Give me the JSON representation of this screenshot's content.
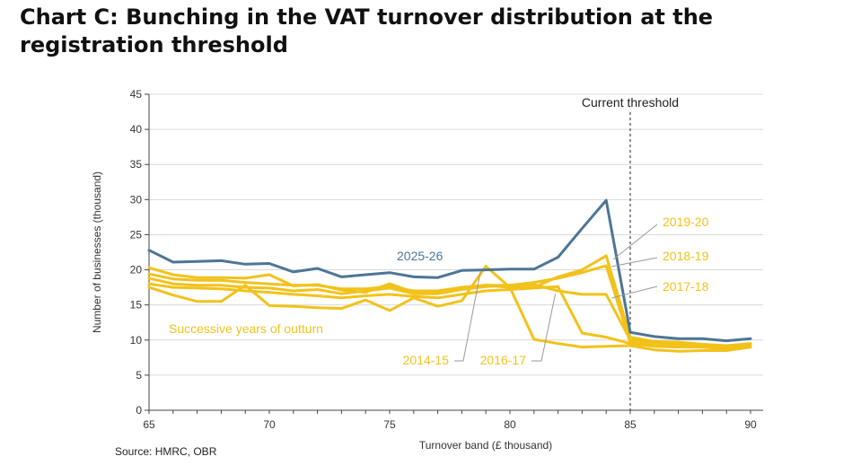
{
  "title": "Chart C: Bunching in the VAT turnover distribution at the registration threshold",
  "source": "Source: HMRC, OBR",
  "colors": {
    "highlight": "#4e7595",
    "outturn": "#f2c21b",
    "axis": "#444444",
    "grid": "#d9d9d9",
    "annotation_line": "#999999"
  },
  "chart_data": {
    "type": "line",
    "title": "Chart C: Bunching in the VAT turnover distribution at the registration threshold",
    "xlabel": "Turnover band (£ thousand)",
    "ylabel": "Number of businesses (thousand)",
    "xlim": [
      65,
      90
    ],
    "ylim": [
      0,
      45
    ],
    "xticks": [
      65,
      70,
      75,
      80,
      85,
      90
    ],
    "yticks": [
      0,
      5,
      10,
      15,
      20,
      25,
      30,
      35,
      40,
      45
    ],
    "grid": "horizontal",
    "threshold": {
      "x": 85,
      "label": "Current threshold"
    },
    "x": [
      65,
      66,
      67,
      68,
      69,
      70,
      71,
      72,
      73,
      74,
      75,
      76,
      77,
      78,
      79,
      80,
      81,
      82,
      83,
      84,
      85,
      86,
      87,
      88,
      89,
      90
    ],
    "series": [
      {
        "name": "2025-26",
        "color": "highlight",
        "values": [
          22.8,
          21.1,
          21.2,
          21.3,
          20.8,
          20.9,
          19.7,
          20.2,
          19.0,
          19.3,
          19.6,
          19.0,
          18.9,
          19.9,
          20.0,
          20.1,
          20.1,
          21.8,
          25.9,
          29.9,
          11.1,
          10.5,
          10.2,
          10.2,
          9.9,
          10.2
        ]
      },
      {
        "name": "2014-15",
        "color": "outturn",
        "values": [
          17.5,
          16.4,
          15.5,
          15.5,
          17.8,
          14.9,
          14.8,
          14.6,
          14.5,
          15.7,
          14.2,
          16.0,
          14.8,
          15.6,
          20.5,
          17.5,
          10.1,
          9.5,
          9.0,
          9.1,
          9.2,
          8.6,
          8.4,
          8.5,
          8.5,
          9.0
        ]
      },
      {
        "name": "2016-17",
        "color": "outturn",
        "values": [
          18.0,
          17.5,
          17.4,
          17.3,
          17.0,
          16.8,
          16.5,
          16.3,
          16.0,
          16.3,
          16.5,
          16.2,
          16.0,
          16.5,
          17.0,
          17.2,
          17.4,
          17.6,
          11.0,
          10.4,
          9.5,
          9.1,
          9.0,
          9.0,
          8.7,
          9.0
        ]
      },
      {
        "name": "2017-18",
        "color": "outturn",
        "values": [
          18.8,
          18.0,
          17.8,
          17.8,
          17.5,
          17.4,
          17.0,
          17.2,
          16.6,
          17.0,
          17.4,
          16.6,
          16.6,
          17.2,
          17.6,
          17.8,
          17.9,
          17.0,
          16.5,
          16.5,
          10.0,
          9.6,
          9.4,
          9.2,
          9.0,
          9.2
        ]
      },
      {
        "name": "2018-19",
        "color": "outturn",
        "values": [
          19.4,
          18.7,
          18.5,
          18.5,
          18.2,
          18.0,
          17.8,
          17.8,
          17.3,
          17.3,
          17.6,
          17.0,
          17.0,
          17.5,
          17.8,
          17.8,
          18.2,
          18.8,
          19.6,
          20.6,
          9.6,
          9.5,
          9.3,
          9.0,
          8.9,
          9.3
        ]
      },
      {
        "name": "2019-20",
        "color": "outturn",
        "values": [
          20.3,
          19.3,
          18.9,
          18.9,
          18.8,
          19.3,
          17.7,
          17.9,
          17.1,
          16.8,
          18.0,
          16.8,
          16.8,
          17.5,
          17.8,
          17.5,
          17.5,
          19.0,
          20.0,
          22.0,
          10.4,
          9.8,
          9.7,
          9.4,
          9.2,
          9.5
        ]
      }
    ],
    "annotations": [
      {
        "text": "2025-26",
        "color": "highlight"
      },
      {
        "text": "Successive years of outturn",
        "color": "outturn"
      },
      {
        "text": "2019-20",
        "color": "outturn",
        "series": "2019-20",
        "point_x": 84
      },
      {
        "text": "2018-19",
        "color": "outturn",
        "series": "2018-19",
        "point_x": 84
      },
      {
        "text": "2017-18",
        "color": "outturn",
        "series": "2017-18",
        "point_x": 84
      },
      {
        "text": "2014-15",
        "color": "outturn",
        "series": "2014-15",
        "point_x": 79
      },
      {
        "text": "2016-17",
        "color": "outturn",
        "series": "2016-17",
        "point_x": 82
      }
    ]
  }
}
